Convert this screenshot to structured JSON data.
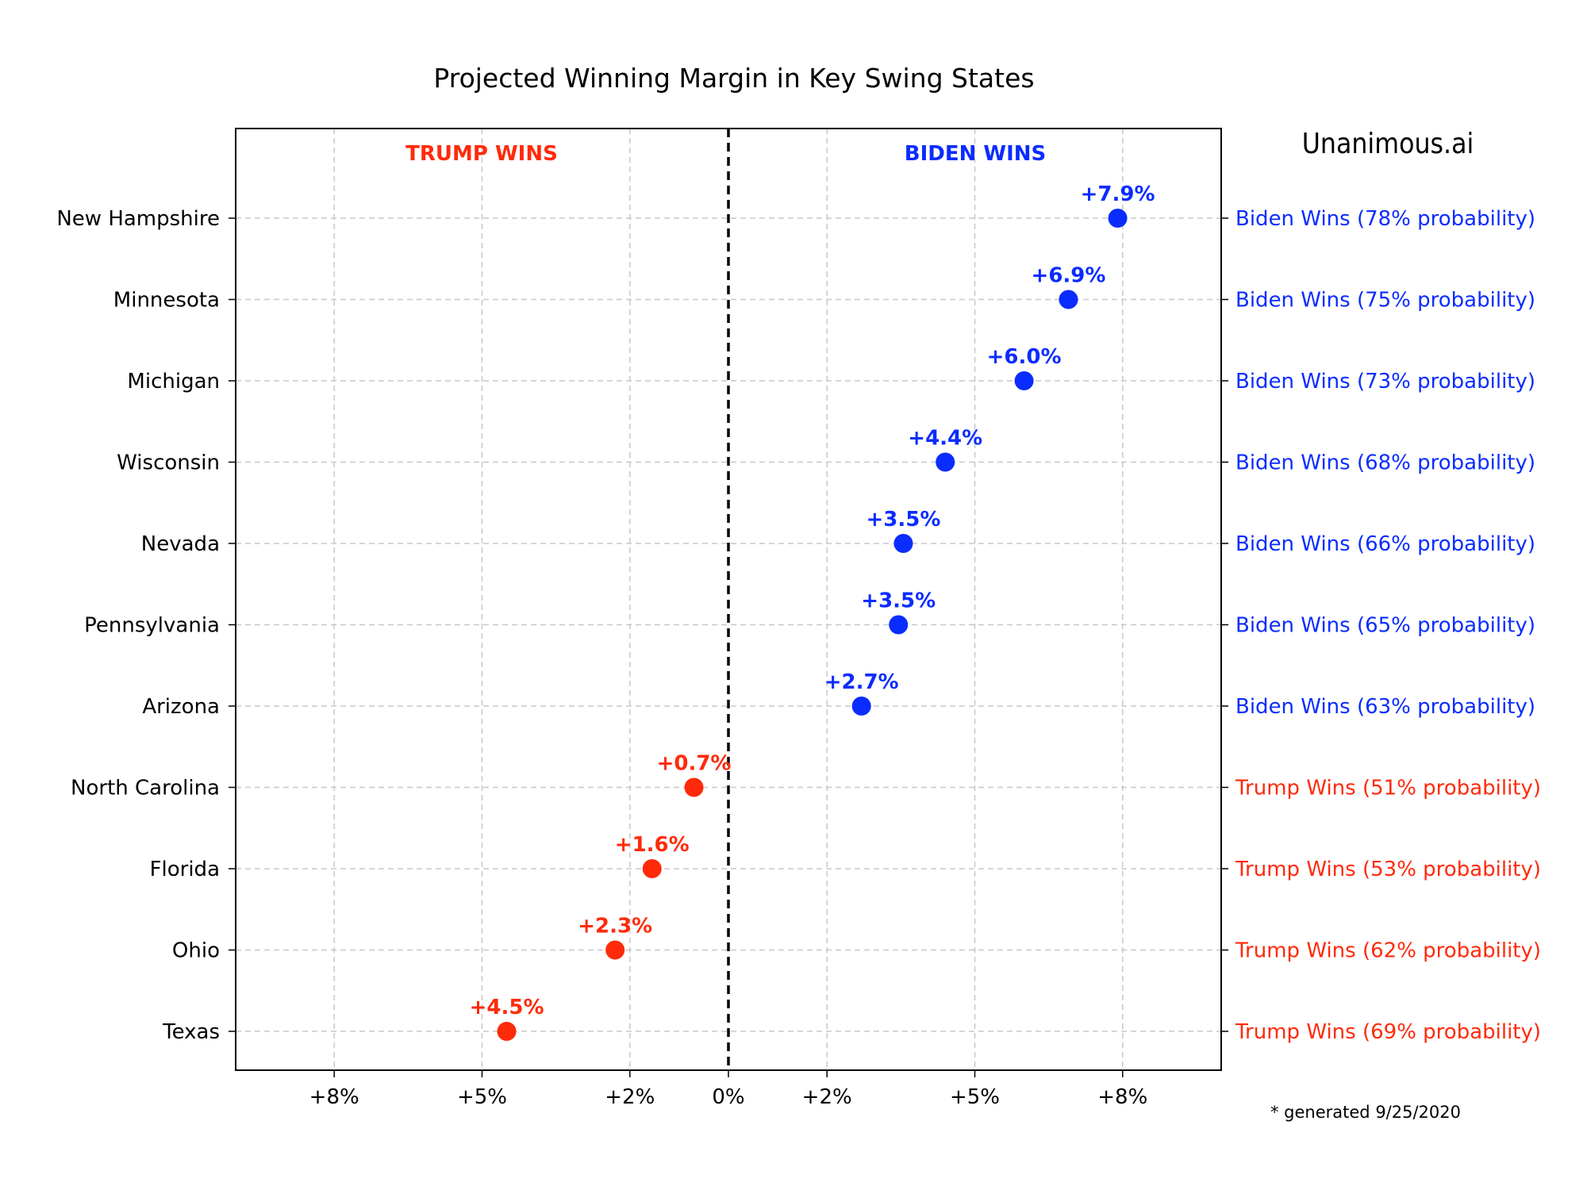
{
  "chart_data": {
    "type": "scatter",
    "title": "Projected Winning Margin in Key Swing States",
    "xlabel": "",
    "ylabel": "",
    "xlim": [
      -10,
      10
    ],
    "xticks": [
      -8,
      -5,
      -2,
      0,
      2,
      5,
      8
    ],
    "xtick_labels": [
      "+8%",
      "+5%",
      "+2%",
      "0%",
      "+2%",
      "+5%",
      "+8%"
    ],
    "grid": true,
    "region_labels": {
      "left": "TRUMP WINS",
      "right": "BIDEN WINS"
    },
    "categories": [
      "New Hampshire",
      "Minnesota",
      "Michigan",
      "Wisconsin",
      "Nevada",
      "Pennsylvania",
      "Arizona",
      "North Carolina",
      "Florida",
      "Ohio",
      "Texas"
    ],
    "points": [
      {
        "state": "New Hampshire",
        "x": 7.9,
        "label": "+7.9%",
        "winner": "Biden",
        "outcome": "Biden Wins (78% probability)"
      },
      {
        "state": "Minnesota",
        "x": 6.9,
        "label": "+6.9%",
        "winner": "Biden",
        "outcome": "Biden Wins (75% probability)"
      },
      {
        "state": "Michigan",
        "x": 6.0,
        "label": "+6.0%",
        "winner": "Biden",
        "outcome": "Biden Wins (73% probability)"
      },
      {
        "state": "Wisconsin",
        "x": 4.4,
        "label": "+4.4%",
        "winner": "Biden",
        "outcome": "Biden Wins (68% probability)"
      },
      {
        "state": "Nevada",
        "x": 3.55,
        "label": "+3.5%",
        "winner": "Biden",
        "outcome": "Biden Wins (66% probability)"
      },
      {
        "state": "Pennsylvania",
        "x": 3.45,
        "label": "+3.5%",
        "winner": "Biden",
        "outcome": "Biden Wins (65% probability)"
      },
      {
        "state": "Arizona",
        "x": 2.7,
        "label": "+2.7%",
        "winner": "Biden",
        "outcome": "Biden Wins (63% probability)"
      },
      {
        "state": "North Carolina",
        "x": -0.7,
        "label": "+0.7%",
        "winner": "Trump",
        "outcome": "Trump Wins (51% probability)"
      },
      {
        "state": "Florida",
        "x": -1.55,
        "label": "+1.6%",
        "winner": "Trump",
        "outcome": "Trump Wins (53% probability)"
      },
      {
        "state": "Ohio",
        "x": -2.3,
        "label": "+2.3%",
        "winner": "Trump",
        "outcome": "Trump Wins (62% probability)"
      },
      {
        "state": "Texas",
        "x": -4.5,
        "label": "+4.5%",
        "winner": "Trump",
        "outcome": "Trump Wins (69% probability)"
      }
    ],
    "colors": {
      "biden": "#0a2cff",
      "trump": "#ff2a0a",
      "grid": "#c8c8c8",
      "zero_line": "#000000"
    }
  },
  "brand": "Unanimous.ai",
  "footnote": "* generated 9/25/2020"
}
